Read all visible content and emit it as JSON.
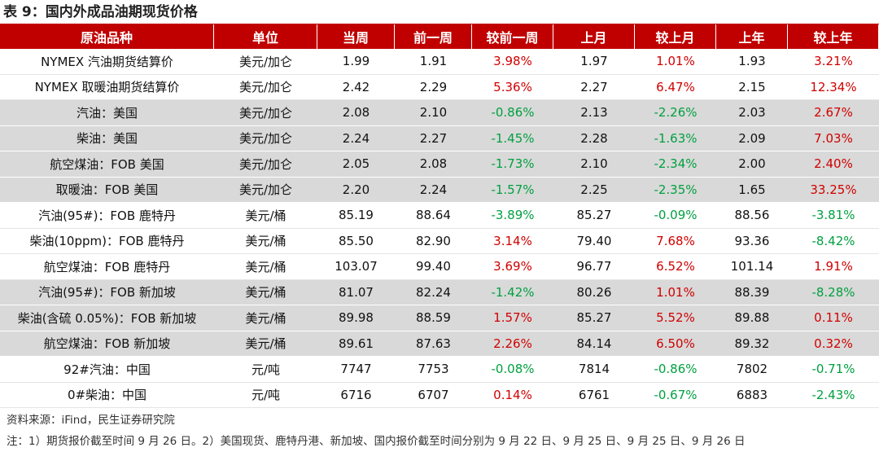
{
  "title": "表 9：国内外成品油期现货价格",
  "table": {
    "header": [
      "原油品种",
      "单位",
      "当周",
      "前一周",
      "较前一周",
      "上月",
      "较上月",
      "上年",
      "较上年"
    ],
    "rows": [
      [
        "NYMEX 汽油期货结算价",
        "美元/加仑",
        "1.99",
        "1.91",
        "3.98%",
        "1.97",
        "1.01%",
        "1.93",
        "3.21%"
      ],
      [
        "NYMEX 取暖油期货结算价",
        "美元/加仑",
        "2.42",
        "2.29",
        "5.36%",
        "2.27",
        "6.47%",
        "2.15",
        "12.34%"
      ],
      [
        "汽油：美国",
        "美元/加仑",
        "2.08",
        "2.10",
        "-0.86%",
        "2.13",
        "-2.26%",
        "2.03",
        "2.67%"
      ],
      [
        "柴油：美国",
        "美元/加仑",
        "2.24",
        "2.27",
        "-1.45%",
        "2.28",
        "-1.63%",
        "2.09",
        "7.03%"
      ],
      [
        "航空煤油：FOB 美国",
        "美元/加仑",
        "2.05",
        "2.08",
        "-1.73%",
        "2.10",
        "-2.34%",
        "2.00",
        "2.40%"
      ],
      [
        "取暖油：FOB 美国",
        "美元/加仑",
        "2.20",
        "2.24",
        "-1.57%",
        "2.25",
        "-2.35%",
        "1.65",
        "33.25%"
      ],
      [
        "汽油(95#)：FOB 鹿特丹",
        "美元/桶",
        "85.19",
        "88.64",
        "-3.89%",
        "85.27",
        "-0.09%",
        "88.56",
        "-3.81%"
      ],
      [
        "柴油(10ppm)：FOB 鹿特丹",
        "美元/桶",
        "85.50",
        "82.90",
        "3.14%",
        "79.40",
        "7.68%",
        "93.36",
        "-8.42%"
      ],
      [
        "航空煤油：FOB 鹿特丹",
        "美元/桶",
        "103.07",
        "99.40",
        "3.69%",
        "96.77",
        "6.52%",
        "101.14",
        "1.91%"
      ],
      [
        "汽油(95#)：FOB 新加坡",
        "美元/桶",
        "81.07",
        "82.24",
        "-1.42%",
        "80.26",
        "1.01%",
        "88.39",
        "-8.28%"
      ],
      [
        "柴油(含硫 0.05%)：FOB 新加坡",
        "美元/桶",
        "89.98",
        "88.59",
        "1.57%",
        "85.27",
        "5.52%",
        "89.88",
        "0.11%"
      ],
      [
        "航空煤油：FOB 新加坡",
        "美元/桶",
        "89.61",
        "87.63",
        "2.26%",
        "84.14",
        "6.50%",
        "89.32",
        "0.32%"
      ],
      [
        "92#汽油：中国",
        "元/吨",
        "7747",
        "7753",
        "-0.08%",
        "7814",
        "-0.86%",
        "7802",
        "-0.71%"
      ],
      [
        "0#柴油：中国",
        "元/吨",
        "6716",
        "6707",
        "0.14%",
        "6761",
        "-0.67%",
        "6883",
        "-2.43%"
      ]
    ]
  },
  "notes": [
    "资料来源：iFind，民生证券研究院",
    "注：1）期货报价截至时间 9 月 26 日。2）美国现货、鹿特丹港、新加坡、国内报价截至时间分别为 9 月 22 日、9 月 25 日、9 月 25 日、9 月 26 日"
  ]
}
